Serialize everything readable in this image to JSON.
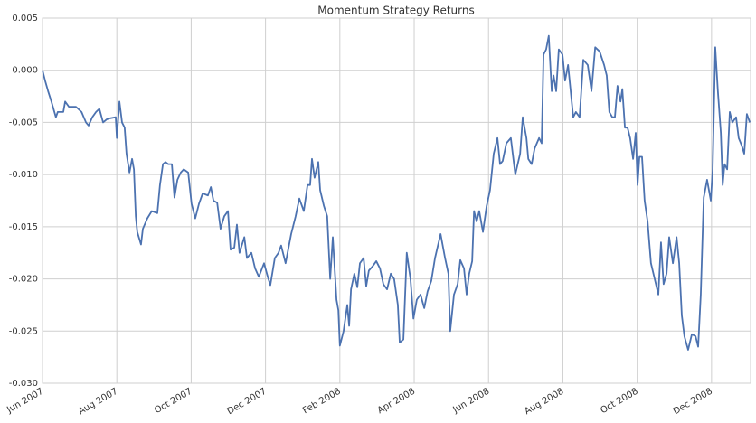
{
  "chart_data": {
    "type": "line",
    "title": "Momentum Strategy Returns",
    "color": "#4c72b0",
    "grid": true,
    "x": [
      0,
      0.07,
      0.15,
      0.24,
      0.36,
      0.41,
      0.56,
      0.61,
      0.71,
      0.8,
      0.9,
      1.05,
      1.17,
      1.24,
      1.34,
      1.44,
      1.53,
      1.63,
      1.73,
      1.82,
      1.97,
      2.0,
      2.07,
      2.14,
      2.21,
      2.26,
      2.34,
      2.41,
      2.46,
      2.51,
      2.55,
      2.65,
      2.7,
      2.82,
      2.94,
      3.09,
      3.16,
      3.24,
      3.31,
      3.38,
      3.48,
      3.55,
      3.63,
      3.72,
      3.8,
      3.92,
      4.01,
      4.11,
      4.21,
      4.31,
      4.45,
      4.53,
      4.6,
      4.7,
      4.79,
      4.89,
      4.99,
      5.06,
      5.16,
      5.23,
      5.3,
      5.43,
      5.5,
      5.62,
      5.72,
      5.82,
      5.96,
      6.06,
      6.13,
      6.25,
      6.35,
      6.42,
      6.54,
      6.69,
      6.81,
      6.91,
      7.03,
      7.13,
      7.2,
      7.25,
      7.32,
      7.42,
      7.47,
      7.57,
      7.66,
      7.74,
      7.81,
      7.91,
      7.96,
      8.0,
      8.1,
      8.2,
      8.25,
      8.3,
      8.39,
      8.47,
      8.54,
      8.64,
      8.71,
      8.78,
      8.88,
      8.98,
      9.08,
      9.17,
      9.27,
      9.37,
      9.46,
      9.56,
      9.61,
      9.71,
      9.8,
      9.9,
      9.98,
      10.07,
      10.17,
      10.27,
      10.36,
      10.46,
      10.56,
      10.71,
      10.83,
      10.92,
      10.97,
      11.07,
      11.17,
      11.24,
      11.34,
      11.41,
      11.48,
      11.56,
      11.61,
      11.68,
      11.75,
      11.85,
      11.95,
      12.04,
      12.14,
      12.24,
      12.31,
      12.38,
      12.48,
      12.6,
      12.72,
      12.85,
      12.92,
      13.02,
      13.07,
      13.16,
      13.24,
      13.36,
      13.43,
      13.48,
      13.55,
      13.62,
      13.7,
      13.75,
      13.82,
      13.89,
      13.99,
      14.06,
      14.14,
      14.21,
      14.28,
      14.35,
      14.45,
      14.55,
      14.67,
      14.77,
      14.87,
      14.99,
      15.11,
      15.18,
      15.25,
      15.33,
      15.4,
      15.47,
      15.55,
      15.6,
      15.67,
      15.74,
      15.81,
      15.89,
      15.96,
      16.01,
      16.06,
      16.13,
      16.2,
      16.28,
      16.37,
      16.47,
      16.57,
      16.64,
      16.71,
      16.79,
      16.86,
      16.96,
      17.06,
      17.13,
      17.2,
      17.27,
      17.37,
      17.47,
      17.57,
      17.64,
      17.71,
      17.79,
      17.88,
      17.98,
      18.03,
      18.1,
      18.17,
      18.25,
      18.3,
      18.35,
      18.42,
      18.49,
      18.56,
      18.66,
      18.73,
      18.81,
      18.88,
      18.95,
      19.03
    ],
    "values": [
      0.0,
      -0.001,
      -0.002,
      -0.003,
      -0.0045,
      -0.004,
      -0.004,
      -0.003,
      -0.0035,
      -0.0035,
      -0.0035,
      -0.004,
      -0.005,
      -0.0053,
      -0.0045,
      -0.004,
      -0.0037,
      -0.005,
      -0.0047,
      -0.0046,
      -0.0045,
      -0.0065,
      -0.003,
      -0.005,
      -0.0055,
      -0.008,
      -0.0098,
      -0.0085,
      -0.0095,
      -0.014,
      -0.0155,
      -0.0167,
      -0.0152,
      -0.0142,
      -0.0135,
      -0.0137,
      -0.011,
      -0.009,
      -0.0088,
      -0.009,
      -0.009,
      -0.0122,
      -0.0105,
      -0.0098,
      -0.0095,
      -0.0098,
      -0.0128,
      -0.0142,
      -0.0128,
      -0.0118,
      -0.012,
      -0.0112,
      -0.0125,
      -0.0127,
      -0.0152,
      -0.014,
      -0.0135,
      -0.0172,
      -0.017,
      -0.0148,
      -0.0175,
      -0.016,
      -0.018,
      -0.0175,
      -0.019,
      -0.0198,
      -0.0185,
      -0.0198,
      -0.0206,
      -0.018,
      -0.0175,
      -0.0168,
      -0.0185,
      -0.0157,
      -0.014,
      -0.0123,
      -0.0135,
      -0.011,
      -0.011,
      -0.0085,
      -0.0103,
      -0.0088,
      -0.0115,
      -0.013,
      -0.014,
      -0.02,
      -0.016,
      -0.022,
      -0.023,
      -0.0264,
      -0.025,
      -0.0225,
      -0.0245,
      -0.021,
      -0.0195,
      -0.0208,
      -0.0185,
      -0.018,
      -0.0207,
      -0.0192,
      -0.0188,
      -0.0183,
      -0.019,
      -0.0205,
      -0.021,
      -0.0195,
      -0.02,
      -0.0225,
      -0.0261,
      -0.0258,
      -0.0175,
      -0.02,
      -0.0238,
      -0.022,
      -0.0215,
      -0.0228,
      -0.0212,
      -0.0202,
      -0.018,
      -0.0157,
      -0.018,
      -0.0195,
      -0.025,
      -0.0215,
      -0.0205,
      -0.0182,
      -0.019,
      -0.0215,
      -0.0195,
      -0.0183,
      -0.0135,
      -0.0145,
      -0.0135,
      -0.0155,
      -0.013,
      -0.0115,
      -0.008,
      -0.0065,
      -0.009,
      -0.0087,
      -0.007,
      -0.0065,
      -0.01,
      -0.008,
      -0.0045,
      -0.0065,
      -0.0085,
      -0.009,
      -0.0075,
      -0.0065,
      -0.007,
      0.0015,
      0.002,
      0.0033,
      -0.002,
      -0.0005,
      -0.002,
      0.002,
      0.0015,
      -0.001,
      0.0005,
      -0.002,
      -0.0045,
      -0.004,
      -0.0045,
      0.001,
      0.0005,
      -0.002,
      0.0022,
      0.0018,
      0.0005,
      -0.0005,
      -0.004,
      -0.0045,
      -0.0045,
      -0.0015,
      -0.003,
      -0.0018,
      -0.0055,
      -0.0055,
      -0.0065,
      -0.0085,
      -0.006,
      -0.011,
      -0.0083,
      -0.0083,
      -0.0125,
      -0.0145,
      -0.0185,
      -0.02,
      -0.0215,
      -0.0165,
      -0.0205,
      -0.0195,
      -0.016,
      -0.0185,
      -0.016,
      -0.0185,
      -0.0235,
      -0.0255,
      -0.0268,
      -0.0253,
      -0.0255,
      -0.0265,
      -0.0215,
      -0.0122,
      -0.0105,
      -0.0125,
      -0.0095,
      0.0022,
      -0.002,
      -0.006,
      -0.011,
      -0.009,
      -0.0095,
      -0.004,
      -0.005,
      -0.0045,
      -0.0065,
      -0.0072,
      -0.008,
      -0.0042,
      -0.005
    ],
    "xlim": [
      0,
      19.05
    ],
    "xticks": [
      {
        "value": 0,
        "label": "Jun 2007"
      },
      {
        "value": 2,
        "label": "Aug 2007"
      },
      {
        "value": 4,
        "label": "Oct 2007"
      },
      {
        "value": 6,
        "label": "Dec 2007"
      },
      {
        "value": 8,
        "label": "Feb 2008"
      },
      {
        "value": 10,
        "label": "Apr 2008"
      },
      {
        "value": 12,
        "label": "Jun 2008"
      },
      {
        "value": 14,
        "label": "Aug 2008"
      },
      {
        "value": 16,
        "label": "Oct 2008"
      },
      {
        "value": 18,
        "label": "Dec 2008"
      }
    ],
    "ylim": [
      -0.03,
      0.005
    ],
    "yticks": [
      {
        "value": -0.03,
        "label": "-0.030"
      },
      {
        "value": -0.025,
        "label": "-0.025"
      },
      {
        "value": -0.02,
        "label": "-0.020"
      },
      {
        "value": -0.015,
        "label": "-0.015"
      },
      {
        "value": -0.01,
        "label": "-0.010"
      },
      {
        "value": -0.005,
        "label": "-0.005"
      },
      {
        "value": 0,
        "label": "0.000"
      },
      {
        "value": 0.005,
        "label": "0.005"
      }
    ]
  }
}
